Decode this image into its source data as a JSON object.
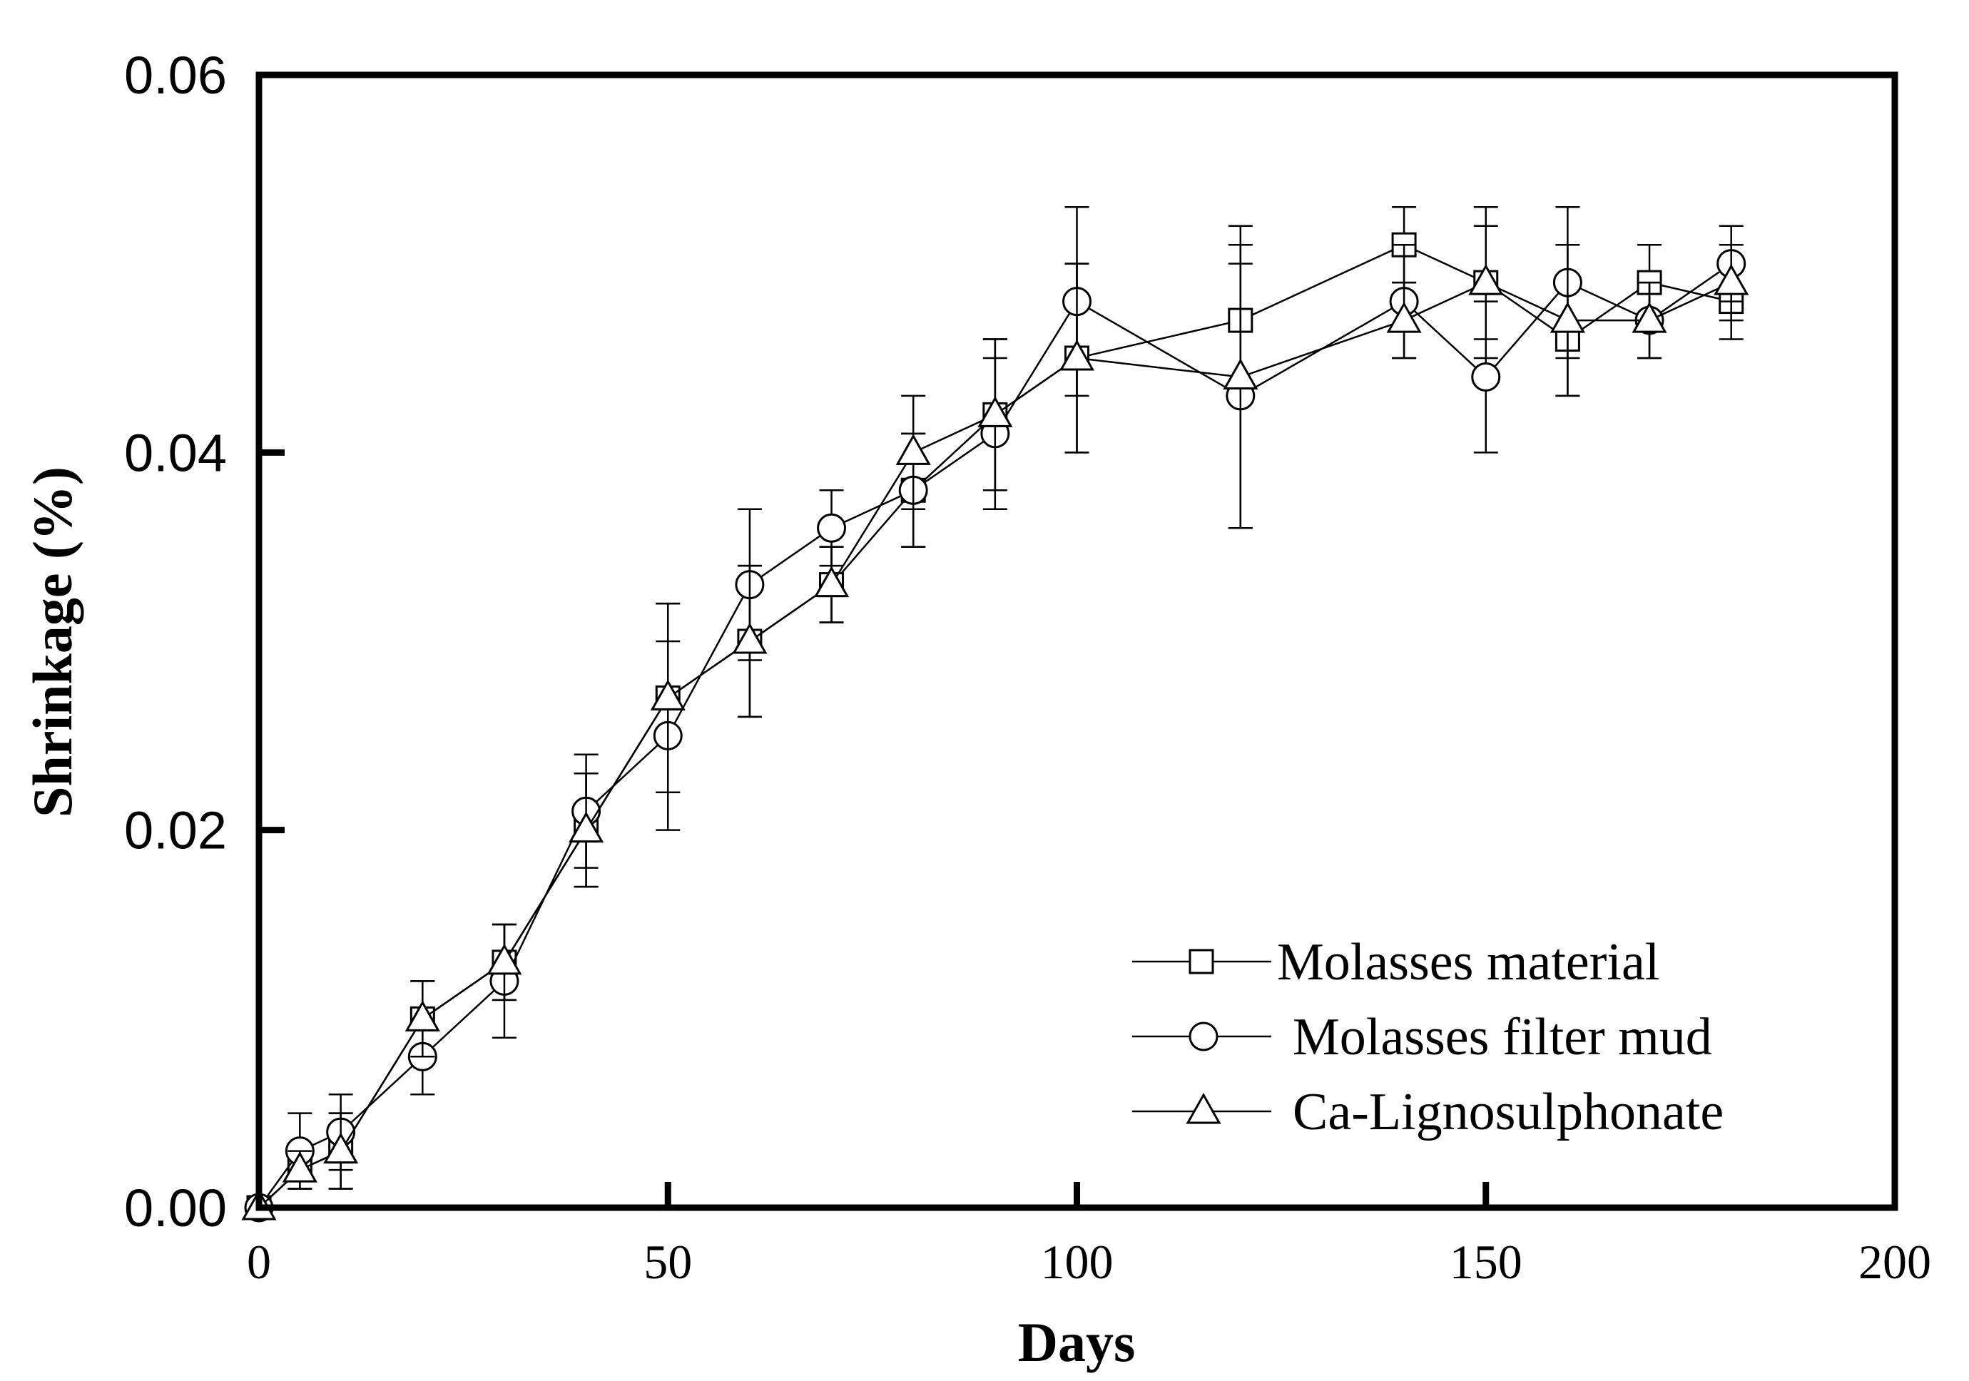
{
  "chart_data": {
    "type": "line",
    "title": "",
    "xlabel": "Days",
    "ylabel": "Shrinkage (%)",
    "xlim": [
      0,
      200
    ],
    "ylim": [
      0,
      0.06
    ],
    "x_ticks": [
      0,
      50,
      100,
      150,
      200
    ],
    "x_tick_labels": [
      "0",
      "50",
      "100",
      "150",
      "200"
    ],
    "y_ticks": [
      0,
      0.02,
      0.04,
      0.06
    ],
    "y_tick_labels": [
      "0.00",
      "0.02",
      "0.04",
      "0.06"
    ],
    "grid": false,
    "legend_position": "bottom-right",
    "series": [
      {
        "name": "Molasses material",
        "marker": "square",
        "x": [
          0,
          5,
          10,
          20,
          30,
          40,
          50,
          60,
          70,
          80,
          90,
          100,
          120,
          140,
          150,
          160,
          170,
          180
        ],
        "y": [
          0,
          0.002,
          0.003,
          0.01,
          0.013,
          0.02,
          0.027,
          0.03,
          0.033,
          0.038,
          0.042,
          0.045,
          0.047,
          0.051,
          0.049,
          0.046,
          0.049,
          0.048
        ],
        "err": [
          0,
          0.001,
          0.002,
          0.002,
          0.002,
          0.003,
          0.005,
          0.004,
          0.002,
          0.003,
          0.004,
          0.005,
          0.004,
          0.002,
          0.003,
          0.003,
          0.002,
          0.002
        ]
      },
      {
        "name": "Molasses filter mud",
        "marker": "circle",
        "x": [
          0,
          5,
          10,
          20,
          30,
          40,
          50,
          60,
          70,
          80,
          90,
          100,
          120,
          140,
          150,
          160,
          170,
          180
        ],
        "y": [
          0,
          0.003,
          0.004,
          0.008,
          0.012,
          0.021,
          0.025,
          0.033,
          0.036,
          0.038,
          0.041,
          0.048,
          0.043,
          0.048,
          0.044,
          0.049,
          0.047,
          0.05
        ],
        "err": [
          0,
          0.002,
          0.002,
          0.002,
          0.003,
          0.003,
          0.005,
          0.004,
          0.002,
          0.003,
          0.004,
          0.005,
          0.007,
          0.003,
          0.004,
          0.004,
          0.002,
          0.002
        ]
      },
      {
        "name": "Ca-Lignosulphonate",
        "marker": "triangle",
        "x": [
          0,
          5,
          10,
          20,
          30,
          40,
          50,
          60,
          70,
          80,
          90,
          100,
          120,
          140,
          150,
          160,
          170,
          180
        ],
        "y": [
          0,
          0.002,
          0.003,
          0.01,
          0.013,
          0.02,
          0.027,
          0.03,
          0.033,
          0.04,
          0.042,
          0.045,
          0.044,
          0.047,
          0.049,
          0.047,
          0.047,
          0.049
        ],
        "err": [
          0,
          0.001,
          0.002,
          0.002,
          0.002,
          0.003,
          0.005,
          0.004,
          0.002,
          0.003,
          0.004,
          0.005,
          0.008,
          0.002,
          0.004,
          0.004,
          0.002,
          0.002
        ]
      }
    ]
  }
}
